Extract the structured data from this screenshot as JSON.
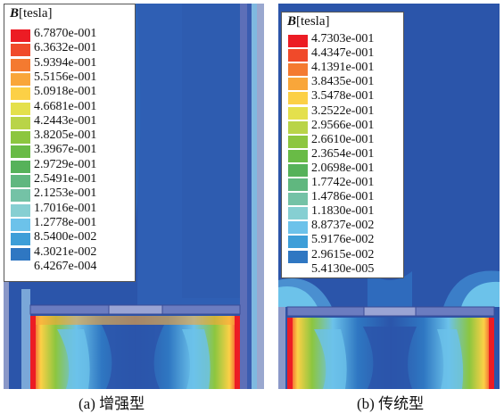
{
  "figure_a": {
    "caption": "(a) 增强型",
    "legend": {
      "symbol": "B",
      "unit": "[tesla]",
      "values": [
        "6.7870e-001",
        "6.3632e-001",
        "5.9394e-001",
        "5.5156e-001",
        "5.0918e-001",
        "4.6681e-001",
        "4.2443e-001",
        "3.8205e-001",
        "3.3967e-001",
        "2.9729e-001",
        "2.5491e-001",
        "2.1253e-001",
        "1.7016e-001",
        "1.2778e-001",
        "8.5400e-002",
        "4.3021e-002",
        "6.4267e-004"
      ],
      "colors": [
        "#ec1c24",
        "#f04a2a",
        "#f47a30",
        "#f9a63a",
        "#fcd046",
        "#e4e04c",
        "#b9d448",
        "#8cc63f",
        "#69bb46",
        "#56b25a",
        "#60b77f",
        "#74c2a6",
        "#86cfd2",
        "#6cc2ea",
        "#3d9ed8",
        "#2f77c2",
        "#2b55aa"
      ]
    }
  },
  "figure_b": {
    "caption": "(b) 传统型",
    "legend": {
      "symbol": "B",
      "unit": "[tesla]",
      "values": [
        "4.7303e-001",
        "4.4347e-001",
        "4.1391e-001",
        "3.8435e-001",
        "3.5478e-001",
        "3.2522e-001",
        "2.9566e-001",
        "2.6610e-001",
        "2.3654e-001",
        "2.0698e-001",
        "1.7742e-001",
        "1.4786e-001",
        "1.1830e-001",
        "8.8737e-002",
        "5.9176e-002",
        "2.9615e-002",
        "5.4130e-005"
      ],
      "colors": [
        "#ec1c24",
        "#f04a2a",
        "#f47a30",
        "#f9a63a",
        "#fcd046",
        "#e4e04c",
        "#b9d448",
        "#8cc63f",
        "#69bb46",
        "#56b25a",
        "#60b77f",
        "#74c2a6",
        "#86cfd2",
        "#6cc2ea",
        "#3d9ed8",
        "#2f77c2",
        "#2b55aa"
      ]
    }
  }
}
